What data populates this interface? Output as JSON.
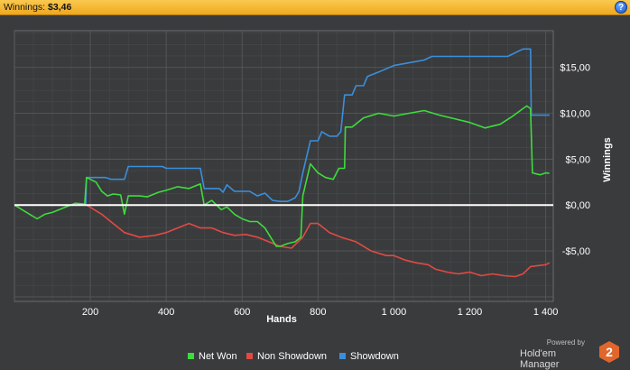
{
  "header": {
    "title_label": "Winnings:",
    "title_value": "$3,46",
    "help_icon": "?"
  },
  "branding": {
    "powered_by": "Powered by",
    "product": "Hold'em Manager",
    "logo_text": "2"
  },
  "colors": {
    "net_won": "#3ddc3d",
    "non_showdown": "#e04a43",
    "showdown": "#3a8fdb",
    "zero_line": "#ffffff",
    "grid": "#5a5b5e",
    "plot_bg": "#3a3b3d"
  },
  "chart_data": {
    "type": "line",
    "title": "",
    "xlabel": "Hands",
    "ylabel": "Winnings",
    "xlim": [
      0,
      1420
    ],
    "ylim": [
      -10.5,
      19
    ],
    "x_ticks": [
      200,
      400,
      600,
      800,
      1000,
      1200,
      1400
    ],
    "x_tick_labels": [
      "200",
      "400",
      "600",
      "800",
      "1 000",
      "1 200",
      "1 400"
    ],
    "y_ticks": [
      -5,
      0,
      5,
      10,
      15
    ],
    "y_tick_labels": [
      "-$5,00",
      "$0,00",
      "$5,00",
      "$10,00",
      "$15,00"
    ],
    "grid": true,
    "legend_position": "bottom-center",
    "series": [
      {
        "name": "Net Won",
        "color_key": "net_won",
        "points": [
          [
            0,
            0
          ],
          [
            20,
            -0.5
          ],
          [
            40,
            -1
          ],
          [
            60,
            -1.5
          ],
          [
            80,
            -1
          ],
          [
            100,
            -0.8
          ],
          [
            130,
            -0.3
          ],
          [
            160,
            0.2
          ],
          [
            185,
            0.1
          ],
          [
            190,
            3
          ],
          [
            215,
            2.5
          ],
          [
            230,
            1.5
          ],
          [
            245,
            1
          ],
          [
            260,
            1.2
          ],
          [
            280,
            1.1
          ],
          [
            290,
            -1
          ],
          [
            300,
            1
          ],
          [
            330,
            1
          ],
          [
            350,
            0.9
          ],
          [
            380,
            1.4
          ],
          [
            400,
            1.6
          ],
          [
            430,
            2
          ],
          [
            460,
            1.8
          ],
          [
            490,
            2.3
          ],
          [
            500,
            0
          ],
          [
            520,
            0.5
          ],
          [
            545,
            -0.5
          ],
          [
            560,
            -0.2
          ],
          [
            580,
            -1
          ],
          [
            600,
            -1.5
          ],
          [
            620,
            -1.8
          ],
          [
            640,
            -1.8
          ],
          [
            660,
            -2.5
          ],
          [
            675,
            -3.5
          ],
          [
            690,
            -4.5
          ],
          [
            700,
            -4.5
          ],
          [
            720,
            -4.2
          ],
          [
            740,
            -4
          ],
          [
            755,
            -3.5
          ],
          [
            760,
            1
          ],
          [
            780,
            4.5
          ],
          [
            800,
            3.5
          ],
          [
            820,
            3
          ],
          [
            840,
            2.8
          ],
          [
            855,
            4
          ],
          [
            870,
            4
          ],
          [
            872,
            8.5
          ],
          [
            890,
            8.5
          ],
          [
            920,
            9.5
          ],
          [
            960,
            10
          ],
          [
            1000,
            9.7
          ],
          [
            1040,
            10
          ],
          [
            1080,
            10.3
          ],
          [
            1120,
            9.8
          ],
          [
            1160,
            9.4
          ],
          [
            1200,
            9.0
          ],
          [
            1240,
            8.4
          ],
          [
            1280,
            8.8
          ],
          [
            1310,
            9.6
          ],
          [
            1340,
            10.5
          ],
          [
            1350,
            10.8
          ],
          [
            1360,
            10.5
          ],
          [
            1365,
            3.5
          ],
          [
            1385,
            3.3
          ],
          [
            1400,
            3.5
          ],
          [
            1410,
            3.46
          ]
        ]
      },
      {
        "name": "Non Showdown",
        "color_key": "non_showdown",
        "points": [
          [
            0,
            0
          ],
          [
            100,
            0
          ],
          [
            190,
            0
          ],
          [
            230,
            -1
          ],
          [
            260,
            -2
          ],
          [
            290,
            -3
          ],
          [
            330,
            -3.5
          ],
          [
            370,
            -3.3
          ],
          [
            400,
            -3
          ],
          [
            430,
            -2.5
          ],
          [
            460,
            -2
          ],
          [
            490,
            -2.5
          ],
          [
            520,
            -2.5
          ],
          [
            550,
            -3
          ],
          [
            580,
            -3.3
          ],
          [
            610,
            -3.2
          ],
          [
            640,
            -3.5
          ],
          [
            670,
            -4
          ],
          [
            700,
            -4.5
          ],
          [
            730,
            -4.7
          ],
          [
            760,
            -3.5
          ],
          [
            780,
            -2
          ],
          [
            800,
            -2
          ],
          [
            830,
            -3
          ],
          [
            860,
            -3.5
          ],
          [
            900,
            -4
          ],
          [
            940,
            -5
          ],
          [
            980,
            -5.5
          ],
          [
            1000,
            -5.5
          ],
          [
            1030,
            -6
          ],
          [
            1060,
            -6.3
          ],
          [
            1090,
            -6.5
          ],
          [
            1110,
            -7
          ],
          [
            1140,
            -7.3
          ],
          [
            1170,
            -7.5
          ],
          [
            1200,
            -7.3
          ],
          [
            1230,
            -7.7
          ],
          [
            1260,
            -7.5
          ],
          [
            1290,
            -7.7
          ],
          [
            1320,
            -7.8
          ],
          [
            1340,
            -7.5
          ],
          [
            1360,
            -6.7
          ],
          [
            1380,
            -6.6
          ],
          [
            1400,
            -6.5
          ],
          [
            1410,
            -6.3
          ]
        ]
      },
      {
        "name": "Showdown",
        "color_key": "showdown",
        "points": [
          [
            0,
            0
          ],
          [
            188,
            0
          ],
          [
            190,
            3
          ],
          [
            240,
            3
          ],
          [
            255,
            2.8
          ],
          [
            290,
            2.8
          ],
          [
            300,
            4.2
          ],
          [
            390,
            4.2
          ],
          [
            400,
            4
          ],
          [
            490,
            4
          ],
          [
            500,
            1.8
          ],
          [
            540,
            1.8
          ],
          [
            550,
            1.4
          ],
          [
            560,
            2.2
          ],
          [
            580,
            1.5
          ],
          [
            620,
            1.5
          ],
          [
            640,
            1
          ],
          [
            660,
            1.3
          ],
          [
            680,
            0.5
          ],
          [
            700,
            0.4
          ],
          [
            720,
            0.4
          ],
          [
            740,
            0.8
          ],
          [
            750,
            1.5
          ],
          [
            760,
            3.5
          ],
          [
            780,
            7
          ],
          [
            800,
            7
          ],
          [
            810,
            8
          ],
          [
            830,
            7.5
          ],
          [
            850,
            7.5
          ],
          [
            860,
            8
          ],
          [
            870,
            12
          ],
          [
            890,
            12
          ],
          [
            900,
            13
          ],
          [
            920,
            13
          ],
          [
            930,
            14
          ],
          [
            960,
            14.5
          ],
          [
            1000,
            15.2
          ],
          [
            1040,
            15.5
          ],
          [
            1080,
            15.8
          ],
          [
            1100,
            16.2
          ],
          [
            1200,
            16.2
          ],
          [
            1300,
            16.2
          ],
          [
            1340,
            17
          ],
          [
            1360,
            17
          ],
          [
            1362,
            9.8
          ],
          [
            1380,
            9.8
          ],
          [
            1410,
            9.8
          ]
        ]
      }
    ]
  }
}
